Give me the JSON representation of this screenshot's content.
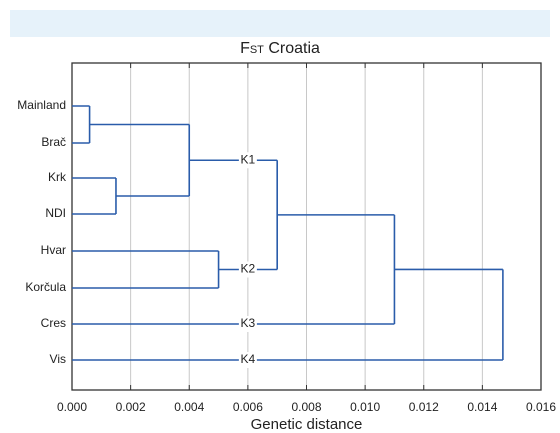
{
  "chart_data": {
    "type": "dendrogram",
    "title": "Croatia",
    "title_prefix": "F",
    "title_subscript": "ST",
    "xlabel": "Genetic distance",
    "xlim": [
      0,
      0.016
    ],
    "x_ticks": [
      "0.000",
      "0.002",
      "0.004",
      "0.006",
      "0.008",
      "0.010",
      "0.012",
      "0.014",
      "0.016"
    ],
    "grid": "vertical",
    "leaves": [
      "Mainland",
      "Brač",
      "Krk",
      "NDI",
      "Hvar",
      "Korčula",
      "Cres",
      "Vis"
    ],
    "clusters": [
      {
        "label": "K1",
        "members": [
          "Mainland",
          "Brač",
          "Krk",
          "NDI"
        ]
      },
      {
        "label": "K2",
        "members": [
          "Hvar",
          "Korčula"
        ]
      },
      {
        "label": "K3",
        "members": [
          "Cres"
        ]
      },
      {
        "label": "K4",
        "members": [
          "Vis"
        ]
      }
    ],
    "merges": [
      {
        "children": [
          "Mainland",
          "Brač"
        ],
        "height": 0.0006
      },
      {
        "children": [
          "Krk",
          "NDI"
        ],
        "height": 0.0015
      },
      {
        "children": [
          "Mainland+Brač",
          "Krk+NDI"
        ],
        "height": 0.004
      },
      {
        "children": [
          "Hvar",
          "Korčula"
        ],
        "height": 0.005
      },
      {
        "children": [
          "K1",
          "K2"
        ],
        "height": 0.007
      },
      {
        "children": [
          "K1+K2",
          "Cres"
        ],
        "height": 0.011
      },
      {
        "children": [
          "K1+K2+Cres",
          "Vis"
        ],
        "height": 0.0147
      }
    ]
  },
  "colors": {
    "line": "#2a5caa",
    "frame": "#333333",
    "grid": "#c8c8c8",
    "top_band": "#e6f2fa",
    "text": "#222222"
  }
}
